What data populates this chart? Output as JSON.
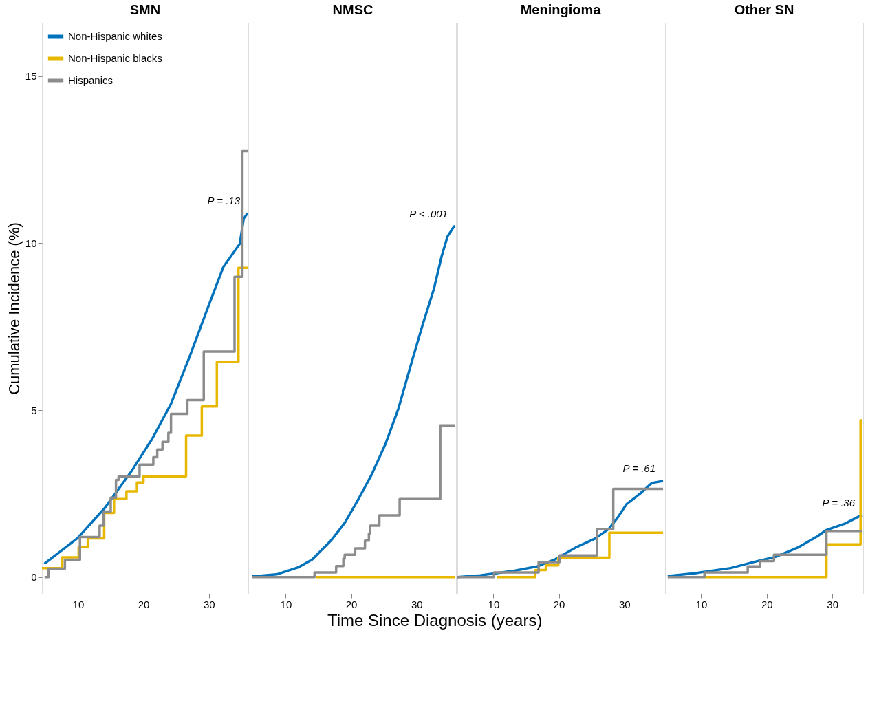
{
  "chart_data": [
    {
      "type": "step",
      "title": "SMN",
      "ylabel": "Cumulative Incidence (%)",
      "xlim": [
        4.5,
        36
      ],
      "ylim": [
        -0.5,
        16.6
      ],
      "xticks": [
        10,
        20,
        30
      ],
      "yticks": [
        0,
        5,
        10,
        15
      ],
      "legend": "top left",
      "grid": false,
      "annotations": [
        "P = .13"
      ],
      "series": [
        {
          "name": "Non-Hispanic whites",
          "type": "line",
          "color": "#0072bc",
          "x": [
            4.87,
            9.9,
            14.1,
            18.3,
            21.3,
            24.2,
            27.1,
            29.7,
            32.2,
            34.7,
            35.3,
            35.9
          ],
          "values": [
            0.4,
            1.16,
            2.07,
            3.21,
            4.13,
            5.19,
            6.63,
            8.0,
            9.29,
            9.98,
            10.74,
            10.9
          ]
        },
        {
          "name": "Non-Hispanic blacks",
          "color": "#e8b800",
          "x": [
            4.5,
            7.6,
            10.1,
            11.5,
            14.0,
            15.5,
            17.4,
            19.0,
            20.0,
            26.5,
            28.9,
            31.2,
            34.5,
            35.9
          ],
          "values": [
            0.27,
            0.59,
            0.9,
            1.16,
            1.92,
            2.34,
            2.57,
            2.83,
            3.02,
            4.24,
            5.11,
            6.44,
            9.26,
            9.26
          ]
        },
        {
          "name": "Hispanics",
          "color": "#8c8c8c",
          "x": [
            4.9,
            5.5,
            8.0,
            10.3,
            13.3,
            13.9,
            15.0,
            15.8,
            16.2,
            19.4,
            21.5,
            22.1,
            22.9,
            23.8,
            24.2,
            26.7,
            29.2,
            33.9,
            35.1,
            35.9
          ],
          "values": [
            0,
            0.25,
            0.52,
            1.2,
            1.54,
            1.96,
            2.38,
            2.91,
            3.02,
            3.37,
            3.59,
            3.82,
            4.05,
            4.32,
            4.89,
            5.3,
            6.75,
            8.99,
            12.76,
            12.76
          ]
        }
      ]
    },
    {
      "type": "step",
      "title": "NMSC",
      "xlabel": "Time Since Diagnosis (years)",
      "xlim": [
        4.5,
        36
      ],
      "ylim": [
        -0.5,
        16.6
      ],
      "xticks": [
        10,
        20,
        30
      ],
      "yticks": [
        0,
        5,
        10,
        15
      ],
      "tick_labels": "x",
      "grid": false,
      "annotations": [
        "P < .001"
      ],
      "series": [
        {
          "type": "line",
          "color": "#0072bc",
          "x": [
            4.9,
            8.6,
            11.9,
            14.0,
            16.9,
            19.0,
            21.0,
            23.1,
            25.2,
            27.2,
            29.3,
            30.9,
            32.6,
            33.8,
            34.7,
            35.7,
            35.9
          ],
          "values": [
            0.02,
            0.08,
            0.29,
            0.52,
            1.09,
            1.62,
            2.3,
            3.06,
            3.97,
            5.04,
            6.48,
            7.55,
            8.61,
            9.6,
            10.2,
            10.5,
            10.5
          ]
        },
        {
          "color": "#e8b800",
          "x": [
            14.6,
            35.9
          ],
          "values": [
            0,
            0
          ]
        },
        {
          "color": "#8c8c8c",
          "x": [
            4.9,
            14.4,
            17.7,
            18.8,
            19.0,
            20.6,
            22.1,
            22.7,
            22.9,
            24.3,
            27.4,
            33.6,
            35.9
          ],
          "values": [
            0,
            0.14,
            0.33,
            0.55,
            0.67,
            0.86,
            1.09,
            1.31,
            1.54,
            1.85,
            2.34,
            4.54,
            4.54
          ]
        }
      ]
    },
    {
      "type": "step",
      "title": "Meningioma",
      "xlim": [
        4.5,
        36
      ],
      "ylim": [
        -0.5,
        16.6
      ],
      "xticks": [
        10,
        20,
        30
      ],
      "yticks": [
        0,
        5,
        10,
        15
      ],
      "tick_labels": "x",
      "grid": false,
      "annotations": [
        "P = .61"
      ],
      "series": [
        {
          "type": "line",
          "color": "#0072bc",
          "x": [
            4.5,
            8.0,
            13.2,
            16.7,
            19.5,
            22.7,
            25.5,
            27.6,
            29.0,
            30.3,
            32.4,
            34.2,
            35.9
          ],
          "values": [
            0,
            0.05,
            0.19,
            0.32,
            0.54,
            0.9,
            1.15,
            1.44,
            1.79,
            2.18,
            2.5,
            2.82,
            2.88
          ]
        },
        {
          "color": "#e8b800",
          "x": [
            10.5,
            16.4,
            18.0,
            19.9,
            27.7,
            35.9
          ],
          "values": [
            0,
            0.21,
            0.35,
            0.58,
            1.33,
            1.33
          ]
        },
        {
          "color": "#8c8c8c",
          "x": [
            4.5,
            10.1,
            16.9,
            20.1,
            25.8,
            28.3,
            35.9
          ],
          "values": [
            0,
            0.14,
            0.45,
            0.65,
            1.44,
            2.64,
            2.64
          ]
        }
      ]
    },
    {
      "type": "step",
      "title": "Other SN",
      "xlim": [
        4.5,
        34.7
      ],
      "ylim": [
        -0.5,
        16.6
      ],
      "xticks": [
        10,
        20,
        30
      ],
      "yticks": [
        0,
        5,
        10,
        15
      ],
      "tick_labels": "x",
      "grid": false,
      "annotations": [
        "P = .36"
      ],
      "series": [
        {
          "type": "line",
          "color": "#0072bc",
          "x": [
            4.9,
            9.2,
            14.5,
            18.0,
            21.4,
            24.9,
            27.7,
            29.1,
            31.9,
            34.0,
            34.6
          ],
          "values": [
            0.03,
            0.12,
            0.27,
            0.45,
            0.61,
            0.9,
            1.22,
            1.41,
            1.6,
            1.81,
            1.85
          ]
        },
        {
          "color": "#e8b800",
          "x": [
            10.5,
            29.1,
            34.3,
            34.6
          ],
          "values": [
            0,
            0.98,
            4.69,
            4.69
          ]
        },
        {
          "color": "#8c8c8c",
          "x": [
            4.9,
            10.5,
            17.1,
            19.0,
            21.1,
            29.1,
            34.6
          ],
          "values": [
            0,
            0.14,
            0.32,
            0.48,
            0.67,
            1.38,
            1.38
          ]
        }
      ]
    }
  ]
}
